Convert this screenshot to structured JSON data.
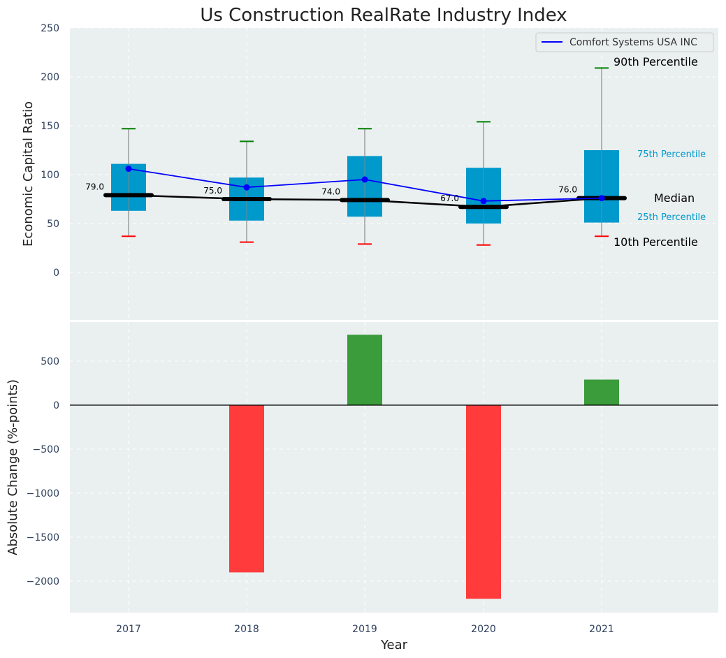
{
  "chart_data": [
    {
      "type": "box",
      "title": "Us Construction RealRate Industry Index",
      "xlabel": "",
      "ylabel": "Economic Capital Ratio",
      "ylim": [
        -50,
        250
      ],
      "yticks": [
        0,
        50,
        100,
        150,
        200,
        250
      ],
      "categories": [
        "2017",
        "2018",
        "2019",
        "2020",
        "2021"
      ],
      "boxes": [
        {
          "year": "2017",
          "p10": 37,
          "q1": 63,
          "median": 79,
          "q3": 111,
          "p90": 147
        },
        {
          "year": "2018",
          "p10": 31,
          "q1": 53,
          "median": 75,
          "q3": 97,
          "p90": 134
        },
        {
          "year": "2019",
          "p10": 29,
          "q1": 57,
          "median": 74,
          "q3": 119,
          "p90": 147
        },
        {
          "year": "2020",
          "p10": 28,
          "q1": 50,
          "median": 67,
          "q3": 107,
          "p90": 154
        },
        {
          "year": "2021",
          "p10": 37,
          "q1": 51,
          "median": 76,
          "q3": 125,
          "p90": 209
        }
      ],
      "median_labels": [
        "79.0",
        "75.0",
        "74.0",
        "67.0",
        "76.0"
      ],
      "series": [
        {
          "name": "Comfort Systems USA INC",
          "values": [
            106,
            87,
            95,
            73,
            76
          ]
        }
      ],
      "legend": {
        "position": "top-right",
        "entries": [
          "Comfort Systems USA INC"
        ]
      },
      "annotations": {
        "p90": "90th Percentile",
        "p75": "75th Percentile",
        "median": "Median",
        "p25": "25th Percentile",
        "p10": "10th Percentile"
      },
      "colors": {
        "box": "#0099cc",
        "series": "#0000ff",
        "median": "#000000",
        "whisker_top": "#008000",
        "whisker_bottom": "#ff0000",
        "annotation_small": "#0099cc",
        "background": "#eaeff0"
      }
    },
    {
      "type": "bar",
      "xlabel": "Year",
      "ylabel": "Absolute Change (%-points)",
      "ylim": [
        -2350,
        1000
      ],
      "yticks": [
        -2000,
        -1500,
        -1000,
        -500,
        0,
        500
      ],
      "ytick_labels": [
        "−2000",
        "−1500",
        "−1000",
        "−500",
        "0",
        "500"
      ],
      "categories": [
        "2017",
        "2018",
        "2019",
        "2020",
        "2021"
      ],
      "values": [
        0,
        -1900,
        800,
        -2200,
        290
      ],
      "colors": {
        "positive": "#3a9c3a",
        "negative": "#ff3b3b"
      }
    }
  ]
}
